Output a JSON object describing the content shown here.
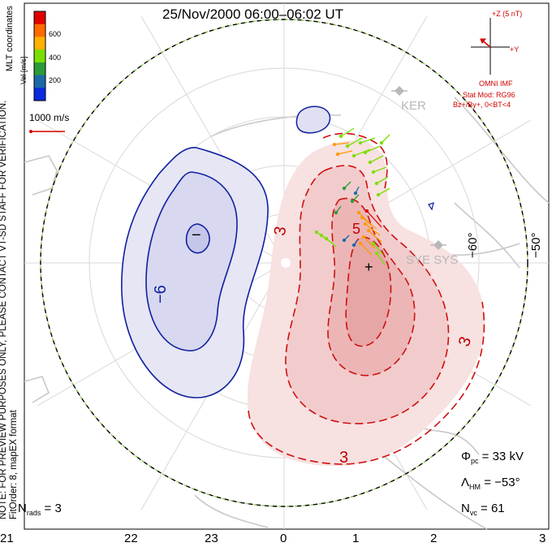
{
  "title": "25/Nov/2000 06:00–06:02 UT",
  "side_note": {
    "line1": "NOTE: FOR PREVIEW PURPOSES ONLY, PLEASE CONTACT VT-SD STAFF FOR VERIFICATION.",
    "line2": "FitOrder: 8, mapEX format"
  },
  "coordinates_label": "MLT coordinates",
  "colorbar": {
    "title": "Vel [m/s]",
    "ticks": [
      "600",
      "400",
      "200"
    ],
    "colors": [
      "#e00000",
      "#ff6a00",
      "#ffb000",
      "#7adf00",
      "#2a9a3a",
      "#1a6aa8",
      "#0a2ae0"
    ]
  },
  "velocity_scale": {
    "label": "1000 m/s",
    "color": "#d40000"
  },
  "imf_panel": {
    "z_label": "+Z (5 nT)",
    "y_label": "+Y",
    "source": "OMNI IMF",
    "model": "Stat Mod: RG96",
    "condition": "Bz+/By+, 0<BT<4",
    "color": "#d40000"
  },
  "sites": [
    "KER",
    "SYE SYS"
  ],
  "stats": {
    "phi_pc": "33 kV",
    "lambda_hm": "−53°",
    "n_vc": "61",
    "n_rads": "3"
  },
  "stat_symbols": {
    "phi": "Φ",
    "phi_sub": "pc",
    "lambda": "Λ",
    "lambda_sub": "HM",
    "n_vc": "N",
    "n_vc_sub": "vc",
    "n_rads": "N",
    "n_rads_sub": "rads",
    "eq": " = "
  },
  "mlt_axis": [
    "21",
    "22",
    "23",
    "0",
    "1",
    "2",
    "3"
  ],
  "lat_labels": [
    "−60°",
    "−50°"
  ],
  "contour_labels": {
    "negative": [
      "−",
      "−6"
    ],
    "positive": [
      "3",
      "5",
      "3",
      "3"
    ]
  },
  "potential_markers": {
    "minimum": "−",
    "maximum": "+"
  },
  "colors": {
    "negative_fill": "#e6e6f4",
    "negative_inner": "#d0d0ee",
    "negative_line": "#1020a0",
    "positive_fill": "#f7e1e1",
    "positive_mid": "#f2cccc",
    "positive_inner": "#ecb6b6",
    "positive_line": "#d01010",
    "land": "#cfcfcf",
    "grid": "#d8d8d8",
    "boundary_dash": "#8acc40"
  }
}
